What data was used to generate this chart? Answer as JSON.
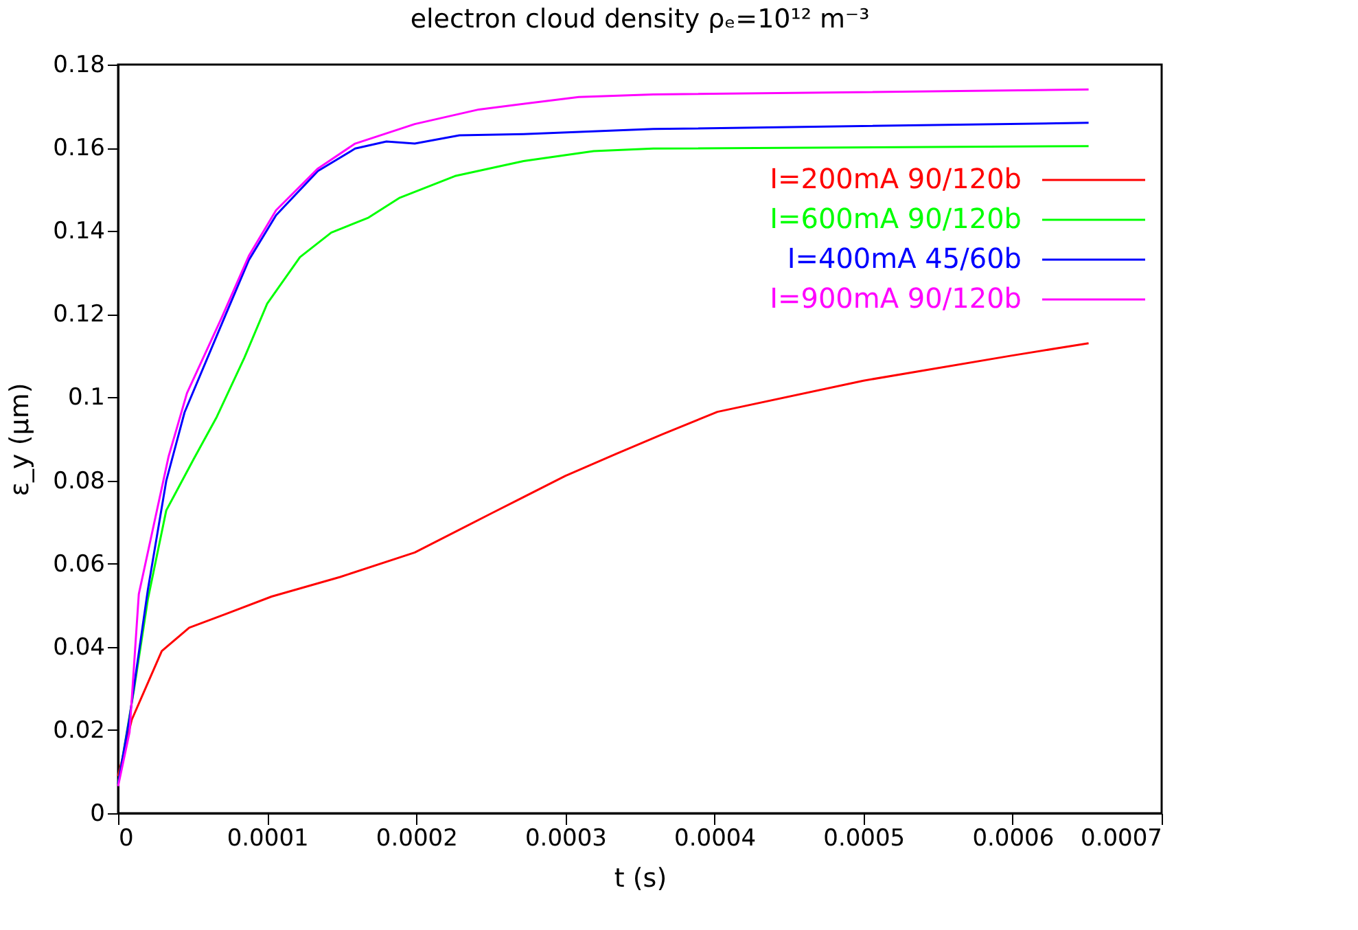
{
  "chart_data": {
    "type": "line",
    "title": "electron cloud density ρₑ=10¹² m⁻³",
    "xlabel": "t (s)",
    "ylabel": "ε_y (μm)",
    "xlim": [
      0,
      0.0007
    ],
    "xticks": [
      0,
      0.0001,
      0.0002,
      0.0003,
      0.0004,
      0.0005,
      0.0006,
      0.0007
    ],
    "ylim": [
      0,
      0.18
    ],
    "yticks": [
      0,
      0.02,
      0.04,
      0.06,
      0.08,
      0.1,
      0.12,
      0.14,
      0.16,
      0.18
    ],
    "grid": false,
    "legend": "top right",
    "marker": "none",
    "line_style": "solid",
    "series": [
      {
        "name": "I=200mA 90/120b",
        "color": "#ff0000",
        "x": [
          0,
          9.2e-06,
          2.93e-05,
          4.77e-05,
          7.23e-05,
          0.000103,
          0.000149,
          0.000199,
          0.000251,
          0.0003,
          0.000334,
          0.000365,
          0.000402,
          0.0005,
          0.000599,
          0.000651
        ],
        "values": [
          0.0089,
          0.0225,
          0.039,
          0.0446,
          0.0479,
          0.0521,
          0.0568,
          0.0627,
          0.0722,
          0.0811,
          0.0864,
          0.0911,
          0.0965,
          0.104,
          0.11,
          0.113
        ]
      },
      {
        "name": "I=600mA 90/120b",
        "color": "#00ff00",
        "x": [
          0,
          1.08e-05,
          2e-05,
          3.23e-05,
          5.08e-05,
          6.62e-05,
          8.47e-05,
          0.0001,
          0.000122,
          0.000143,
          0.000168,
          0.000189,
          0.000226,
          0.000272,
          0.000319,
          0.000359,
          0.000651
        ],
        "values": [
          0.007,
          0.03,
          0.0515,
          0.0728,
          0.0852,
          0.0953,
          0.1095,
          0.1225,
          0.1337,
          0.1396,
          0.1432,
          0.148,
          0.1532,
          0.1568,
          0.1592,
          0.1598,
          0.1604
        ]
      },
      {
        "name": "I=400mA 45/60b",
        "color": "#0000ff",
        "x": [
          0,
          7.7e-06,
          2e-05,
          3.23e-05,
          4.46e-05,
          7.23e-05,
          8.77e-05,
          0.000106,
          0.000134,
          0.000159,
          0.00018,
          0.000199,
          0.000229,
          0.000272,
          0.000359,
          0.000651
        ],
        "values": [
          0.007,
          0.023,
          0.0538,
          0.0799,
          0.0964,
          0.12,
          0.133,
          0.1438,
          0.1544,
          0.1598,
          0.1615,
          0.161,
          0.163,
          0.1633,
          0.1645,
          0.166
        ]
      },
      {
        "name": "I=900mA 90/120b",
        "color": "#ff00ff",
        "x": [
          0,
          7.7e-06,
          1.39e-05,
          3.39e-05,
          4.62e-05,
          6.93e-05,
          8.77e-05,
          0.000106,
          0.000134,
          0.000159,
          0.000199,
          0.000242,
          0.000309,
          0.000359,
          0.000651
        ],
        "values": [
          0.0065,
          0.0195,
          0.0527,
          0.0858,
          0.101,
          0.119,
          0.134,
          0.145,
          0.155,
          0.161,
          0.1657,
          0.1692,
          0.1722,
          0.1728,
          0.174
        ]
      }
    ]
  }
}
